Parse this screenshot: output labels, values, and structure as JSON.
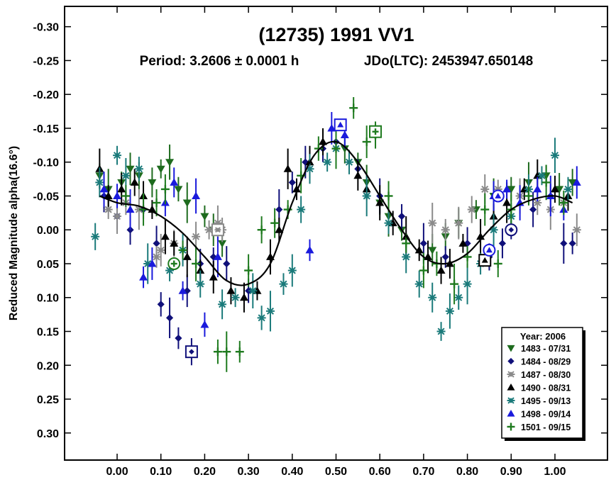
{
  "chart_data": {
    "type": "scatter",
    "title": "(12735) 1991 VV1",
    "subtitle_period": "Period: 3.2606 ± 0.0001 h",
    "subtitle_epoch": "JDo(LTC): 2453947.650148",
    "ylabel": "Reduced Magnitude alpha(16.6°)",
    "xlabel": "",
    "xlim": [
      -0.12,
      1.12
    ],
    "ylim": [
      -0.33,
      0.34
    ],
    "y_inverted": true,
    "grid": false,
    "legend_position": "bottom-right",
    "legend_title": "Year: 2006",
    "x_ticks": [
      0.0,
      0.1,
      0.2,
      0.3,
      0.4,
      0.5,
      0.6,
      0.7,
      0.8,
      0.9,
      1.0
    ],
    "x_tick_labels": [
      "0.00",
      "0.10",
      "0.20",
      "0.30",
      "0.40",
      "0.50",
      "0.60",
      "0.70",
      "0.80",
      "0.90",
      "1.00"
    ],
    "y_ticks": [
      -0.3,
      -0.25,
      -0.2,
      -0.15,
      -0.1,
      -0.05,
      0.0,
      0.05,
      0.1,
      0.15,
      0.2,
      0.25,
      0.3
    ],
    "y_tick_labels": [
      "-0.30",
      "-0.25",
      "-0.20",
      "-0.15",
      "-0.10",
      "-0.05",
      "0.00",
      "0.05",
      "0.10",
      "0.15",
      "0.20",
      "0.25",
      "0.30"
    ],
    "fit_curve": {
      "x": [
        -0.04,
        0.0,
        0.05,
        0.1,
        0.15,
        0.2,
        0.25,
        0.3,
        0.35,
        0.4,
        0.45,
        0.5,
        0.55,
        0.6,
        0.65,
        0.7,
        0.75,
        0.8,
        0.85,
        0.9,
        0.95,
        1.0,
        1.04
      ],
      "y": [
        -0.05,
        -0.04,
        -0.035,
        -0.02,
        0.005,
        0.04,
        0.075,
        0.08,
        0.05,
        -0.04,
        -0.11,
        -0.13,
        -0.1,
        -0.05,
        0.0,
        0.04,
        0.05,
        0.035,
        0.0,
        -0.03,
        -0.045,
        -0.05,
        -0.04
      ]
    },
    "series": [
      {
        "name": "1483 - 07/31",
        "marker": "triangle-down",
        "color": "#1e6b1e",
        "points": [
          [
            -0.04,
            -0.08
          ],
          [
            -0.02,
            -0.06
          ],
          [
            0.01,
            -0.07
          ],
          [
            0.03,
            -0.09
          ],
          [
            0.05,
            -0.08
          ],
          [
            0.08,
            -0.07
          ],
          [
            0.1,
            -0.09
          ],
          [
            0.12,
            -0.1
          ],
          [
            0.14,
            -0.06
          ],
          [
            0.16,
            -0.04
          ],
          [
            0.2,
            -0.02
          ],
          [
            0.22,
            0.0
          ],
          [
            0.24,
            0.02
          ],
          [
            0.52,
            -0.12
          ],
          [
            0.55,
            -0.1
          ],
          [
            0.57,
            -0.07
          ],
          [
            0.6,
            -0.04
          ],
          [
            0.62,
            -0.02
          ],
          [
            0.65,
            0.0
          ],
          [
            0.72,
            0.03
          ],
          [
            0.75,
            0.01
          ],
          [
            0.78,
            -0.01
          ],
          [
            0.82,
            -0.03
          ],
          [
            0.86,
            -0.05
          ],
          [
            0.9,
            -0.06
          ],
          [
            0.94,
            -0.07
          ],
          [
            0.98,
            -0.08
          ],
          [
            1.01,
            -0.06
          ],
          [
            1.04,
            -0.07
          ]
        ]
      },
      {
        "name": "1484 - 08/29",
        "marker": "diamond",
        "color": "#10107a",
        "points": [
          [
            -0.03,
            -0.05
          ],
          [
            0.0,
            -0.02
          ],
          [
            0.03,
            0.0
          ],
          [
            0.06,
            -0.03
          ],
          [
            0.09,
            0.02
          ],
          [
            0.1,
            0.11
          ],
          [
            0.12,
            0.13
          ],
          [
            0.14,
            0.16
          ],
          [
            0.16,
            0.09
          ],
          [
            0.17,
            0.18
          ],
          [
            0.19,
            0.05
          ],
          [
            0.22,
            0.04
          ],
          [
            0.25,
            0.05
          ],
          [
            0.3,
            0.09
          ],
          [
            0.37,
            -0.03
          ],
          [
            0.4,
            -0.07
          ],
          [
            0.43,
            -0.1
          ],
          [
            0.47,
            -0.12
          ],
          [
            0.5,
            -0.13
          ],
          [
            0.55,
            -0.09
          ],
          [
            0.6,
            -0.05
          ],
          [
            0.65,
            -0.02
          ],
          [
            0.7,
            0.02
          ],
          [
            0.75,
            0.04
          ],
          [
            0.8,
            0.02
          ],
          [
            0.85,
            0.04
          ],
          [
            0.88,
            0.02
          ],
          [
            0.9,
            0.0
          ],
          [
            0.95,
            -0.03
          ],
          [
            0.99,
            -0.05
          ],
          [
            1.02,
            0.02
          ],
          [
            1.04,
            0.02
          ]
        ]
      },
      {
        "name": "1487 - 08/30",
        "marker": "asterisk",
        "color": "#8a8a8a",
        "points": [
          [
            -0.02,
            -0.03
          ],
          [
            0.0,
            -0.02
          ],
          [
            0.02,
            -0.04
          ],
          [
            0.05,
            -0.03
          ],
          [
            0.09,
            0.04
          ],
          [
            0.1,
            0.03
          ],
          [
            0.13,
            0.02
          ],
          [
            0.18,
            0.01
          ],
          [
            0.21,
            0.0
          ],
          [
            0.23,
            -0.01
          ],
          [
            0.24,
            0.0
          ],
          [
            0.72,
            -0.01
          ],
          [
            0.75,
            0.0
          ],
          [
            0.78,
            -0.01
          ],
          [
            0.81,
            -0.03
          ],
          [
            0.84,
            -0.06
          ],
          [
            0.87,
            -0.06
          ],
          [
            0.92,
            -0.05
          ],
          [
            0.96,
            -0.04
          ],
          [
            0.99,
            -0.03
          ],
          [
            1.02,
            -0.04
          ],
          [
            1.05,
            0.0
          ]
        ]
      },
      {
        "name": "1490 - 08/31",
        "marker": "triangle-up",
        "color": "#000000",
        "points": [
          [
            -0.04,
            -0.09
          ],
          [
            -0.02,
            -0.05
          ],
          [
            0.01,
            -0.06
          ],
          [
            0.04,
            -0.07
          ],
          [
            0.06,
            -0.05
          ],
          [
            0.08,
            -0.03
          ],
          [
            0.11,
            0.01
          ],
          [
            0.13,
            0.02
          ],
          [
            0.16,
            0.04
          ],
          [
            0.19,
            0.06
          ],
          [
            0.22,
            0.07
          ],
          [
            0.26,
            0.09
          ],
          [
            0.29,
            0.1
          ],
          [
            0.32,
            0.09
          ],
          [
            0.35,
            0.04
          ],
          [
            0.37,
            0.0
          ],
          [
            0.39,
            -0.09
          ],
          [
            0.41,
            -0.06
          ],
          [
            0.44,
            -0.1
          ],
          [
            0.47,
            -0.13
          ],
          [
            0.55,
            -0.08
          ],
          [
            0.57,
            -0.06
          ],
          [
            0.6,
            -0.04
          ],
          [
            0.63,
            -0.01
          ],
          [
            0.66,
            0.01
          ],
          [
            0.69,
            0.03
          ],
          [
            0.71,
            0.04
          ],
          [
            0.74,
            0.06
          ],
          [
            0.76,
            0.05
          ],
          [
            0.79,
            0.02
          ],
          [
            0.83,
            0.01
          ],
          [
            0.86,
            -0.02
          ],
          [
            0.89,
            -0.04
          ],
          [
            0.93,
            -0.06
          ],
          [
            0.96,
            -0.08
          ],
          [
            1.0,
            -0.06
          ],
          [
            1.03,
            -0.05
          ]
        ]
      },
      {
        "name": "1495 - 09/13",
        "marker": "asterisk",
        "color": "#1a7a7a",
        "points": [
          [
            -0.05,
            0.01
          ],
          [
            -0.04,
            -0.07
          ],
          [
            0.0,
            -0.11
          ],
          [
            0.02,
            -0.08
          ],
          [
            0.05,
            -0.09
          ],
          [
            0.07,
            0.05
          ],
          [
            0.12,
            0.06
          ],
          [
            0.15,
            0.03
          ],
          [
            0.19,
            0.08
          ],
          [
            0.24,
            0.11
          ],
          [
            0.27,
            0.1
          ],
          [
            0.31,
            0.09
          ],
          [
            0.33,
            0.13
          ],
          [
            0.35,
            0.12
          ],
          [
            0.38,
            0.08
          ],
          [
            0.4,
            0.06
          ],
          [
            0.42,
            -0.03
          ],
          [
            0.44,
            -0.09
          ],
          [
            0.48,
            -0.1
          ],
          [
            0.5,
            -0.12
          ],
          [
            0.53,
            -0.1
          ],
          [
            0.57,
            -0.05
          ],
          [
            0.62,
            -0.01
          ],
          [
            0.66,
            0.04
          ],
          [
            0.69,
            0.08
          ],
          [
            0.72,
            0.1
          ],
          [
            0.74,
            0.15
          ],
          [
            0.76,
            0.12
          ],
          [
            0.78,
            0.1
          ],
          [
            0.8,
            0.08
          ],
          [
            0.83,
            0.05
          ],
          [
            0.86,
            0.0
          ],
          [
            0.9,
            -0.02
          ],
          [
            0.94,
            -0.06
          ],
          [
            0.97,
            -0.08
          ],
          [
            1.0,
            -0.11
          ],
          [
            1.03,
            -0.06
          ]
        ]
      },
      {
        "name": "1498 - 09/14",
        "marker": "triangle-up",
        "color": "#1a1adc",
        "points": [
          [
            -0.03,
            -0.06
          ],
          [
            0.0,
            -0.05
          ],
          [
            0.03,
            -0.03
          ],
          [
            0.06,
            0.07
          ],
          [
            0.08,
            0.05
          ],
          [
            0.11,
            -0.04
          ],
          [
            0.13,
            -0.07
          ],
          [
            0.15,
            0.09
          ],
          [
            0.18,
            -0.05
          ],
          [
            0.2,
            0.14
          ],
          [
            0.23,
            0.04
          ],
          [
            0.44,
            0.03
          ],
          [
            0.49,
            -0.15
          ],
          [
            0.52,
            -0.14
          ],
          [
            0.86,
            -0.05
          ],
          [
            0.89,
            -0.06
          ],
          [
            0.92,
            -0.04
          ],
          [
            0.96,
            -0.06
          ],
          [
            0.99,
            -0.05
          ],
          [
            1.02,
            -0.03
          ],
          [
            1.05,
            -0.07
          ]
        ]
      },
      {
        "name": "1501 - 09/15",
        "marker": "plus",
        "color": "#1e7a1e",
        "points": [
          [
            0.02,
            -0.05
          ],
          [
            0.06,
            -0.03
          ],
          [
            0.09,
            -0.04
          ],
          [
            0.11,
            -0.06
          ],
          [
            0.15,
            0.03
          ],
          [
            0.18,
            0.05
          ],
          [
            0.23,
            0.18
          ],
          [
            0.25,
            0.18
          ],
          [
            0.28,
            0.18
          ],
          [
            0.3,
            0.06
          ],
          [
            0.33,
            0.0
          ],
          [
            0.36,
            -0.01
          ],
          [
            0.39,
            -0.03
          ],
          [
            0.42,
            -0.08
          ],
          [
            0.46,
            -0.12
          ],
          [
            0.5,
            -0.12
          ],
          [
            0.54,
            -0.18
          ],
          [
            0.57,
            -0.13
          ],
          [
            0.59,
            -0.14
          ],
          [
            0.62,
            -0.05
          ],
          [
            0.66,
            0.02
          ],
          [
            0.7,
            0.06
          ],
          [
            0.73,
            0.05
          ],
          [
            0.77,
            0.08
          ],
          [
            0.8,
            0.04
          ],
          [
            0.84,
            -0.03
          ],
          [
            0.87,
            0.05
          ],
          [
            0.9,
            -0.03
          ],
          [
            0.94,
            -0.05
          ],
          [
            0.98,
            -0.07
          ],
          [
            1.02,
            -0.04
          ]
        ]
      }
    ],
    "highlighted_points": [
      {
        "series": "1501 - 09/15",
        "shape": "circle",
        "x": 0.13,
        "y": 0.05
      },
      {
        "series": "1484 - 08/29",
        "shape": "square",
        "x": 0.17,
        "y": 0.18
      },
      {
        "series": "1487 - 08/30",
        "shape": "square",
        "x": 0.23,
        "y": 0.0
      },
      {
        "series": "1498 - 09/14",
        "shape": "square",
        "x": 0.51,
        "y": -0.155
      },
      {
        "series": "1501 - 09/15",
        "shape": "square",
        "x": 0.59,
        "y": -0.145
      },
      {
        "series": "1490 - 08/31",
        "shape": "square",
        "x": 0.84,
        "y": 0.045
      },
      {
        "series": "1498 - 09/14",
        "shape": "circle",
        "x": 0.85,
        "y": 0.03
      },
      {
        "series": "1498 - 09/14",
        "shape": "circle",
        "x": 0.87,
        "y": -0.05
      },
      {
        "series": "1484 - 08/29",
        "shape": "circle",
        "x": 0.9,
        "y": 0.0
      }
    ]
  }
}
